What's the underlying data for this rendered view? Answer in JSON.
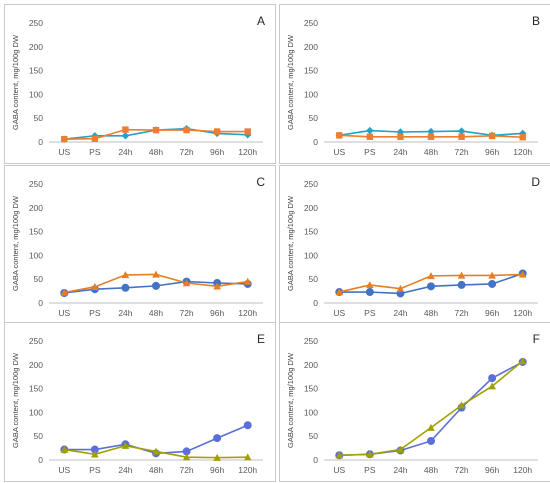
{
  "figure": {
    "panel_order": [
      "A",
      "B",
      "C",
      "D",
      "E",
      "F"
    ]
  },
  "chart_data": [
    {
      "panel": "A",
      "type": "line",
      "ylabel": "GABA content, mg/100g DW",
      "categories": [
        "US",
        "PS",
        "24h",
        "48h",
        "72h",
        "96h",
        "120h"
      ],
      "yticks": [
        0,
        50,
        100,
        150,
        200,
        250
      ],
      "ylim": [
        0,
        250
      ],
      "grid": false,
      "series": [
        {
          "color": "#1fa3c8",
          "marker": "diamond",
          "values": [
            6,
            13,
            13,
            25,
            28,
            18,
            15
          ]
        },
        {
          "color": "#ed7d31",
          "marker": "square",
          "values": [
            6,
            7,
            26,
            25,
            25,
            22,
            22
          ]
        }
      ]
    },
    {
      "panel": "B",
      "type": "line",
      "ylabel": "GABA content, mg/100g DW",
      "categories": [
        "US",
        "PS",
        "24h",
        "48h",
        "72h",
        "96h",
        "120h"
      ],
      "yticks": [
        0,
        50,
        100,
        150,
        200,
        250
      ],
      "ylim": [
        0,
        250
      ],
      "grid": false,
      "series": [
        {
          "color": "#1fa3c8",
          "marker": "diamond",
          "values": [
            14,
            24,
            21,
            22,
            23,
            14,
            18
          ]
        },
        {
          "color": "#ed7d31",
          "marker": "square",
          "values": [
            14,
            11,
            11,
            11,
            11,
            13,
            10
          ]
        }
      ]
    },
    {
      "panel": "C",
      "type": "line",
      "ylabel": "GABA content, mg/100g DW",
      "categories": [
        "US",
        "PS",
        "24h",
        "48h",
        "72h",
        "96h",
        "120h"
      ],
      "yticks": [
        0,
        50,
        100,
        150,
        200,
        250
      ],
      "ylim": [
        0,
        250
      ],
      "grid": false,
      "series": [
        {
          "color": "#4472c4",
          "marker": "circle",
          "values": [
            21,
            29,
            32,
            36,
            45,
            42,
            40
          ]
        },
        {
          "color": "#e67e22",
          "marker": "triangle",
          "values": [
            22,
            34,
            59,
            60,
            42,
            35,
            45
          ]
        }
      ]
    },
    {
      "panel": "D",
      "type": "line",
      "ylabel": "GABA content, mg/100g DW",
      "categories": [
        "US",
        "PS",
        "24h",
        "48h",
        "72h",
        "96h",
        "120h"
      ],
      "yticks": [
        0,
        50,
        100,
        150,
        200,
        250
      ],
      "ylim": [
        0,
        250
      ],
      "grid": false,
      "series": [
        {
          "color": "#4472c4",
          "marker": "circle",
          "values": [
            23,
            23,
            20,
            35,
            38,
            40,
            62
          ]
        },
        {
          "color": "#e67e22",
          "marker": "triangle",
          "values": [
            23,
            38,
            30,
            57,
            58,
            58,
            60
          ]
        }
      ]
    },
    {
      "panel": "E",
      "type": "line",
      "ylabel": "GABA content, mg/100g DW",
      "categories": [
        "US",
        "PS",
        "24h",
        "48h",
        "72h",
        "96h",
        "120h"
      ],
      "yticks": [
        0,
        50,
        100,
        150,
        200,
        250
      ],
      "ylim": [
        0,
        250
      ],
      "grid": false,
      "series": [
        {
          "color": "#5b6fd6",
          "marker": "circle",
          "values": [
            22,
            22,
            33,
            14,
            18,
            46,
            73
          ]
        },
        {
          "color": "#a0a000",
          "marker": "triangle",
          "values": [
            22,
            12,
            30,
            18,
            6,
            5,
            6
          ]
        }
      ]
    },
    {
      "panel": "F",
      "type": "line",
      "ylabel": "GABA content, mg/100g DW",
      "categories": [
        "US",
        "PS",
        "24h",
        "48h",
        "72h",
        "96h",
        "120h"
      ],
      "yticks": [
        0,
        50,
        100,
        150,
        200,
        250
      ],
      "ylim": [
        0,
        250
      ],
      "grid": false,
      "series": [
        {
          "color": "#5b6fd6",
          "marker": "circle",
          "values": [
            10,
            12,
            20,
            40,
            110,
            172,
            206
          ]
        },
        {
          "color": "#a0a000",
          "marker": "triangle",
          "values": [
            10,
            12,
            22,
            68,
            115,
            155,
            208
          ]
        }
      ]
    }
  ]
}
